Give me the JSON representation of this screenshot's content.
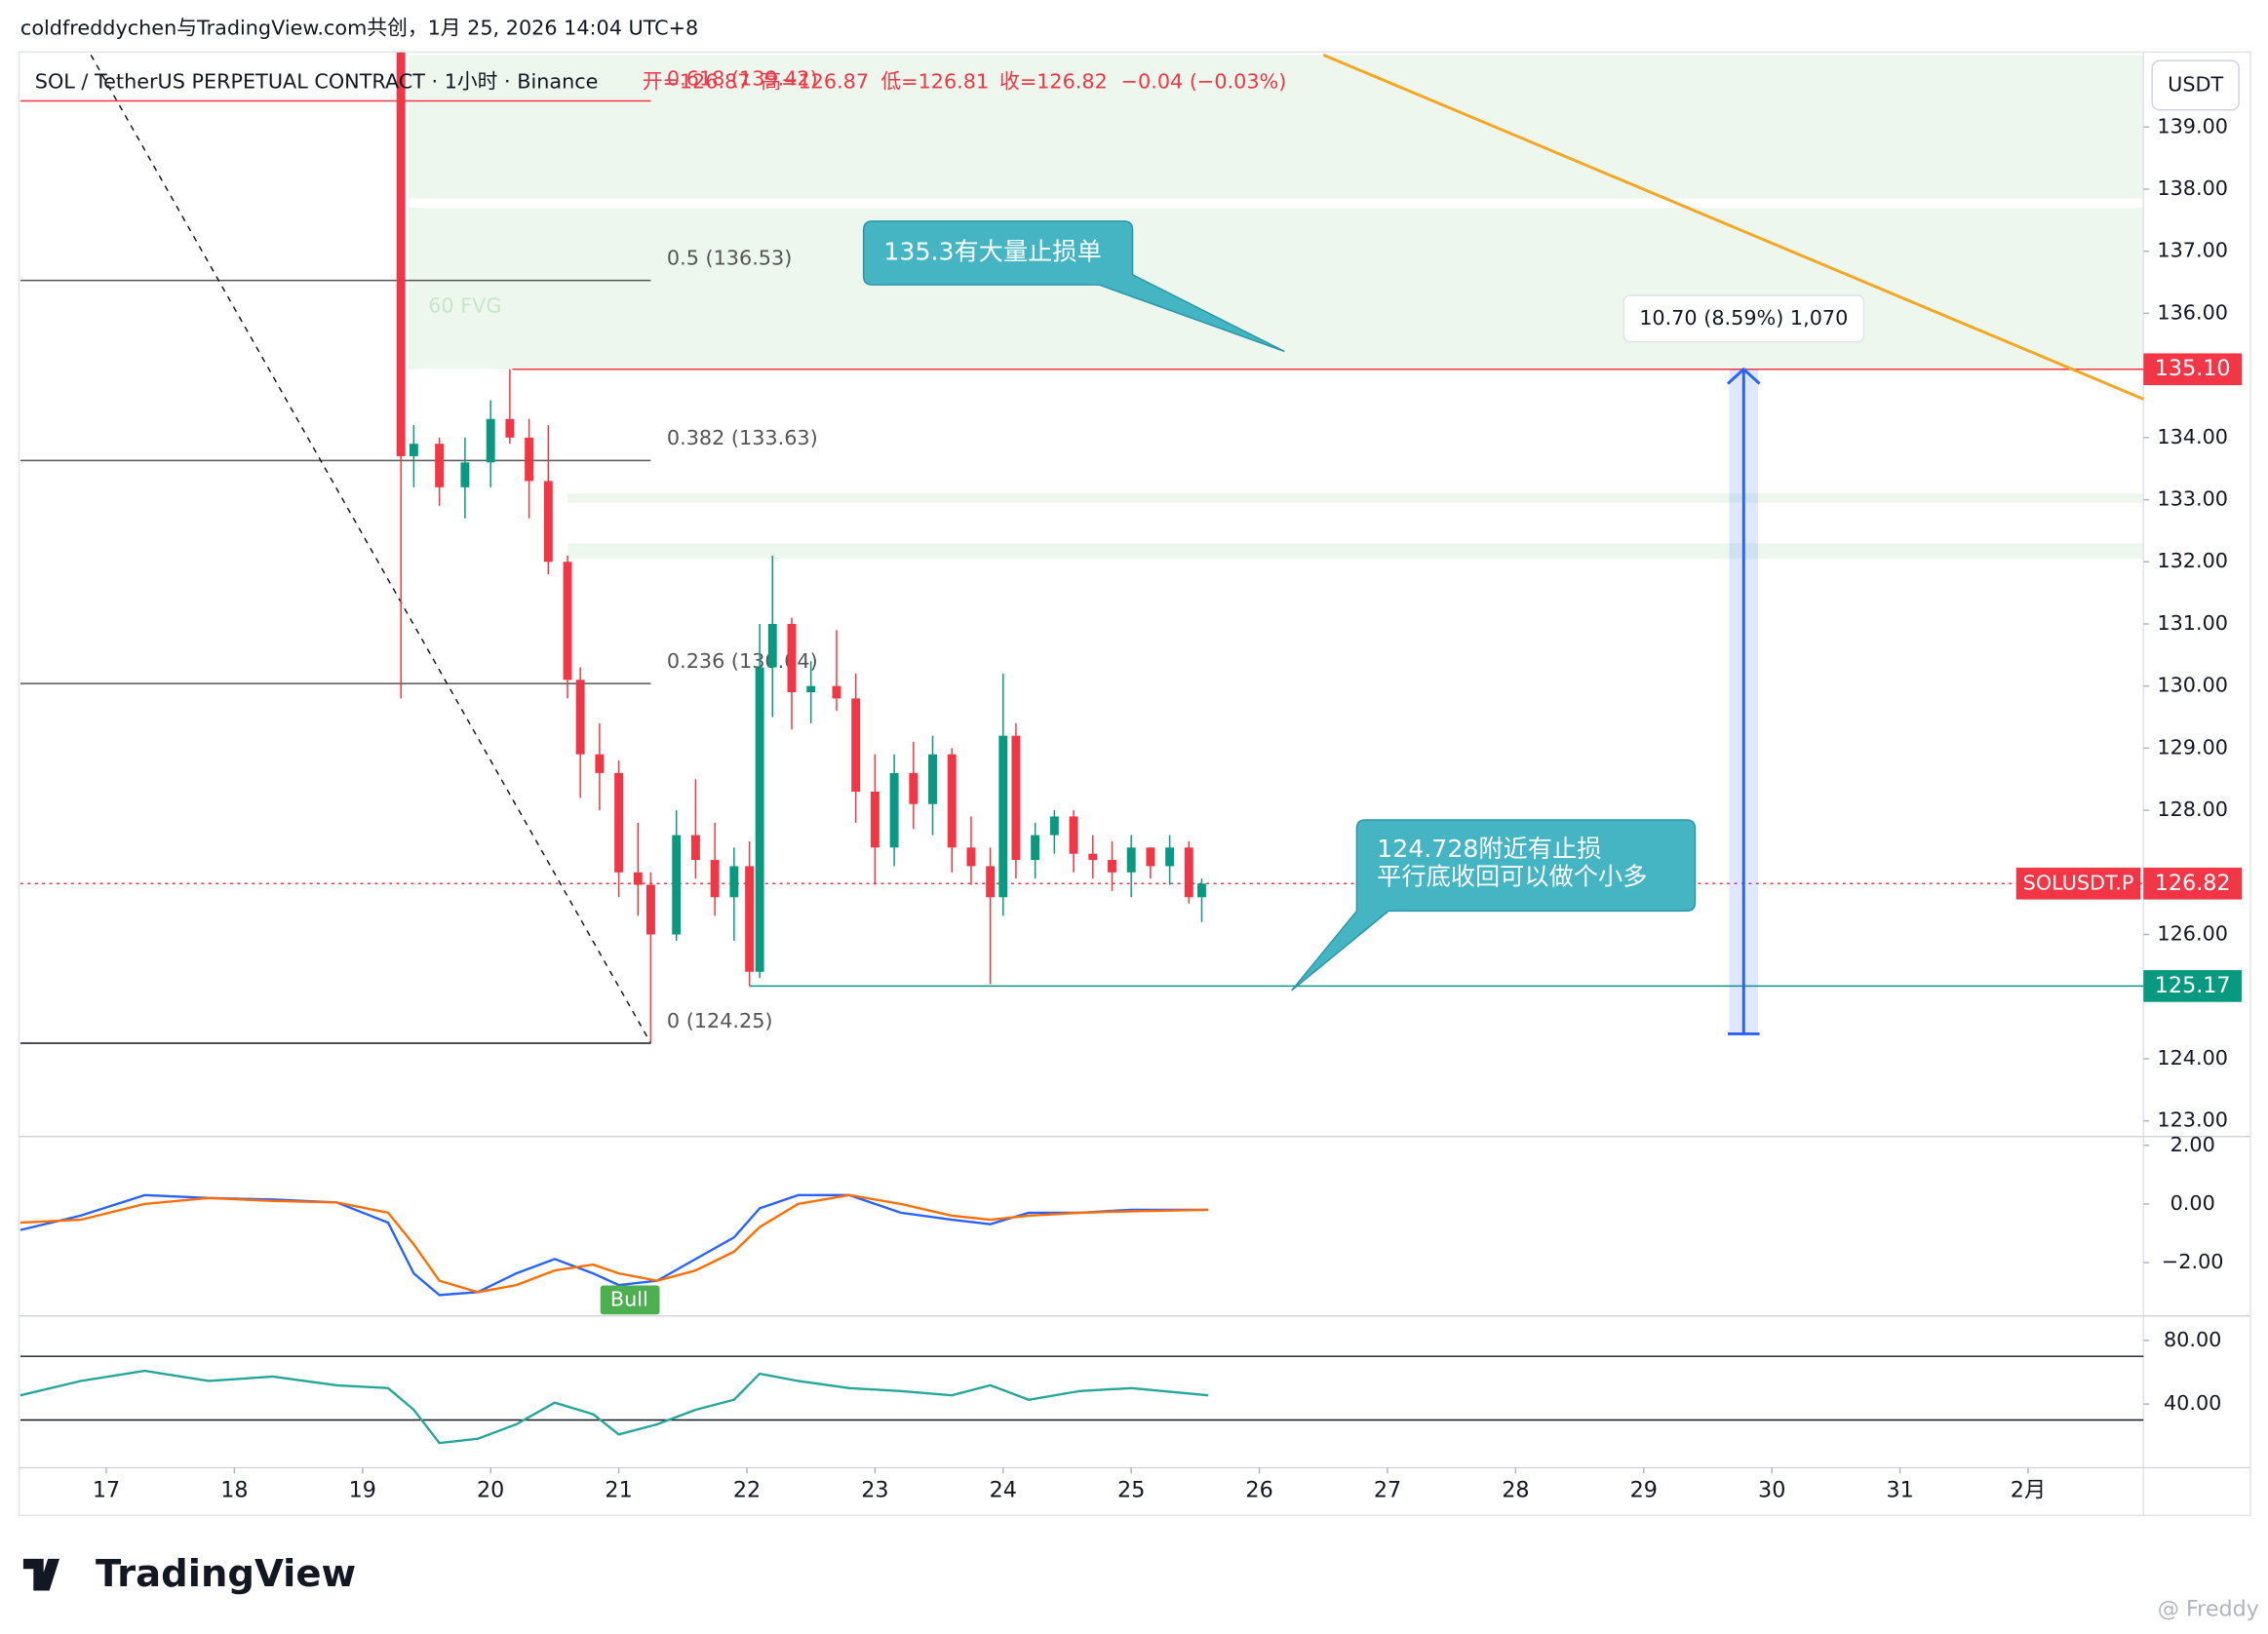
{
  "header": {
    "byline": "coldfreddychen与TradingView.com共创，1月 25, 2026 14:04 UTC+8",
    "symbol": "SOL / TetherUS PERPETUAL CONTRACT · 1小时 · Binance",
    "open": "开=126.87",
    "high": "高=126.87",
    "low": "低=126.81",
    "close": "收=126.82",
    "change": "−0.04 (−0.03%)",
    "currency": "USDT"
  },
  "annotations": [
    "135.3有大量止损单",
    "124.728附近有止损",
    "平行底收回可以做个小多"
  ],
  "logo": "TradingView",
  "watermark": "@ Freddy",
  "chart_data": [
    {
      "type": "candlestick",
      "x": [
        19.3,
        19.4,
        19.6,
        19.8,
        20.0,
        20.15,
        20.3,
        20.45,
        20.6,
        20.7,
        20.85,
        21.0,
        21.15,
        21.25,
        21.45,
        21.6,
        21.75,
        21.9,
        22.02,
        22.1,
        22.2,
        22.35,
        22.5,
        22.7,
        22.85,
        23.0,
        23.15,
        23.3,
        23.45,
        23.6,
        23.75,
        23.9,
        24.0,
        24.1,
        24.25,
        24.4,
        24.55,
        24.7,
        24.85,
        25.0,
        25.15,
        25.3,
        25.45,
        25.55
      ],
      "open": [
        140.2,
        133.7,
        133.9,
        133.2,
        133.6,
        134.3,
        134.0,
        133.3,
        132.0,
        130.1,
        128.9,
        128.6,
        127.0,
        126.8,
        126.0,
        127.6,
        127.2,
        126.6,
        127.1,
        125.4,
        130.3,
        131.0,
        129.9,
        130.0,
        129.8,
        128.3,
        127.4,
        128.6,
        128.1,
        128.9,
        127.4,
        127.1,
        126.6,
        129.2,
        127.2,
        127.6,
        127.9,
        127.3,
        127.2,
        127.0,
        127.4,
        127.1,
        127.4,
        126.6
      ],
      "high": [
        140.2,
        134.2,
        134.0,
        134.0,
        134.6,
        135.1,
        134.3,
        134.2,
        132.1,
        130.3,
        129.4,
        128.8,
        127.8,
        127.0,
        128.0,
        128.5,
        127.8,
        127.4,
        127.5,
        131.0,
        132.1,
        131.1,
        130.4,
        130.9,
        130.2,
        128.9,
        128.9,
        129.1,
        129.2,
        129.0,
        127.9,
        127.4,
        130.2,
        129.4,
        127.8,
        128.0,
        128.0,
        127.6,
        127.5,
        127.6,
        127.4,
        127.6,
        127.5,
        126.9
      ],
      "low": [
        129.8,
        133.2,
        132.9,
        132.7,
        133.2,
        133.9,
        132.7,
        131.8,
        129.8,
        128.2,
        128.0,
        126.6,
        126.3,
        124.25,
        125.9,
        126.9,
        126.3,
        125.9,
        125.17,
        125.3,
        129.5,
        129.3,
        129.4,
        129.6,
        127.8,
        126.8,
        127.1,
        127.7,
        127.6,
        127.0,
        126.8,
        125.2,
        126.3,
        126.9,
        126.9,
        127.3,
        127.0,
        126.9,
        126.7,
        126.6,
        126.9,
        126.8,
        126.5,
        126.2
      ],
      "close": [
        133.7,
        133.9,
        133.2,
        133.6,
        134.3,
        134.0,
        133.3,
        132.0,
        130.1,
        128.9,
        128.6,
        127.0,
        126.8,
        126.0,
        127.6,
        127.2,
        126.6,
        127.1,
        125.4,
        130.3,
        131.0,
        129.9,
        130.0,
        129.8,
        128.3,
        127.4,
        128.6,
        128.1,
        128.9,
        127.4,
        127.1,
        126.6,
        129.2,
        127.2,
        127.6,
        127.9,
        127.3,
        127.2,
        127.0,
        127.4,
        127.1,
        127.4,
        126.6,
        126.82
      ],
      "up_color": "#089981",
      "down_color": "#f23645",
      "xlim": [
        16.33,
        32.9
      ],
      "xticks": [
        17,
        18,
        19,
        20,
        21,
        22,
        23,
        24,
        25,
        26,
        27,
        28,
        29,
        30,
        31,
        {
          "value": 32,
          "label": "2月"
        }
      ],
      "ylim": [
        122.77,
        140.16
      ],
      "yticks": [
        {
          "value": 123,
          "label": "123.00"
        },
        {
          "value": 124,
          "label": "124.00"
        },
        {
          "value": 126,
          "label": "126.00"
        },
        {
          "value": 128,
          "label": "128.00"
        },
        {
          "value": 129,
          "label": "129.00"
        },
        {
          "value": 130,
          "label": "130.00"
        },
        {
          "value": 131,
          "label": "131.00"
        },
        {
          "value": 132,
          "label": "132.00"
        },
        {
          "value": 133,
          "label": "133.00"
        },
        {
          "value": 134,
          "label": "134.00"
        },
        {
          "value": 136,
          "label": "136.00"
        },
        {
          "value": 137,
          "label": "137.00"
        },
        {
          "value": 138,
          "label": "138.00"
        },
        {
          "value": 139,
          "label": "139.00"
        }
      ],
      "grid": false,
      "price_tags": [
        {
          "value": 135.1,
          "label": "135.10",
          "color": "#f23645",
          "from": 20.17
        },
        {
          "value": 126.82,
          "label": "126.82",
          "name": "SOLUSDT.P",
          "color": "#f23645",
          "from": 16.33
        },
        {
          "value": 125.17,
          "label": "125.17",
          "color": "#089981",
          "from": 22.02
        }
      ],
      "fib": [
        {
          "value": 139.42,
          "label": "0.618 (139.42)"
        },
        {
          "value": 136.53,
          "label": "0.5 (136.53)"
        },
        {
          "value": 133.63,
          "label": "0.382 (133.63)"
        },
        {
          "value": 130.04,
          "label": "0.236 (130.04)"
        },
        {
          "value": 124.25,
          "label": "0 (124.25)"
        }
      ],
      "fib_end": 21.25,
      "zones": [
        {
          "from": 135.1,
          "to": 137.7,
          "x0": 19.36
        },
        {
          "from": 137.85,
          "to": 140.16,
          "x0": 19.36
        },
        {
          "from": 132.95,
          "to": 133.1,
          "x0": 20.6
        },
        {
          "from": 132.05,
          "to": 132.3,
          "x0": 20.6
        }
      ],
      "zone_label": "60 FVG",
      "trend_line": {
        "x": [
          26.5,
          32.9
        ],
        "y": [
          140.16,
          134.62
        ],
        "color": "#f5a623"
      },
      "dashed_line": {
        "x": [
          16.88,
          21.25
        ],
        "y": [
          140.16,
          124.25
        ]
      },
      "measure": {
        "x": 29.78,
        "from": 124.4,
        "to": 135.1,
        "label": "10.70 (8.59%) 1,070",
        "color": "#2962ff"
      }
    },
    {
      "type": "line",
      "x": [
        16.33,
        16.8,
        17.3,
        17.8,
        18.3,
        18.8,
        19.2,
        19.4,
        19.6,
        19.9,
        20.2,
        20.5,
        20.8,
        21.0,
        21.3,
        21.6,
        21.9,
        22.1,
        22.4,
        22.8,
        23.2,
        23.6,
        23.9,
        24.2,
        24.6,
        25.0,
        25.6
      ],
      "ylim": [
        -3.82,
        2.2
      ],
      "yticks": [
        {
          "value": 2,
          "label": "2.00"
        },
        {
          "value": 0,
          "label": "0.00"
        },
        {
          "value": -2,
          "label": "−2.00"
        }
      ],
      "series": [
        {
          "color": "#2962ff",
          "values": [
            -0.89,
            -0.4,
            0.3,
            0.2,
            0.15,
            0.05,
            -0.64,
            -2.37,
            -3.11,
            -3.01,
            -2.37,
            -1.88,
            -2.37,
            -2.77,
            -2.62,
            -1.88,
            -1.14,
            -0.15,
            0.3,
            0.3,
            -0.3,
            -0.54,
            -0.69,
            -0.3,
            -0.3,
            -0.2,
            -0.2
          ]
        },
        {
          "color": "#ff6d00",
          "values": [
            -0.64,
            -0.54,
            0,
            0.2,
            0.1,
            0.05,
            -0.3,
            -1.38,
            -2.62,
            -3.01,
            -2.77,
            -2.27,
            -2.07,
            -2.37,
            -2.62,
            -2.27,
            -1.63,
            -0.79,
            0,
            0.3,
            0,
            -0.4,
            -0.54,
            -0.4,
            -0.3,
            -0.25,
            -0.2
          ]
        }
      ],
      "signal_label": "Bull"
    },
    {
      "type": "line",
      "x": [
        16.33,
        16.8,
        17.3,
        17.8,
        18.3,
        18.8,
        19.2,
        19.4,
        19.6,
        19.9,
        20.2,
        20.5,
        20.8,
        21.0,
        21.3,
        21.6,
        21.9,
        22.1,
        22.4,
        22.8,
        23.2,
        23.6,
        23.9,
        24.2,
        24.6,
        25.0,
        25.6
      ],
      "ylim": [
        0,
        93.6
      ],
      "yticks": [
        {
          "value": 80,
          "label": "80.00"
        },
        {
          "value": 40,
          "label": "40.00"
        }
      ],
      "bands": [
        70,
        30
      ],
      "series": [
        {
          "color": "#26a69a",
          "values": [
            45.5,
            54.5,
            60.9,
            54.5,
            57.3,
            51.8,
            50,
            36.4,
            15.5,
            18.2,
            27.3,
            40.9,
            33.6,
            20.9,
            27.3,
            36.4,
            42.7,
            59.1,
            54.5,
            50,
            48.2,
            45.5,
            51.8,
            42.7,
            48.2,
            50,
            45.5
          ]
        }
      ]
    }
  ]
}
